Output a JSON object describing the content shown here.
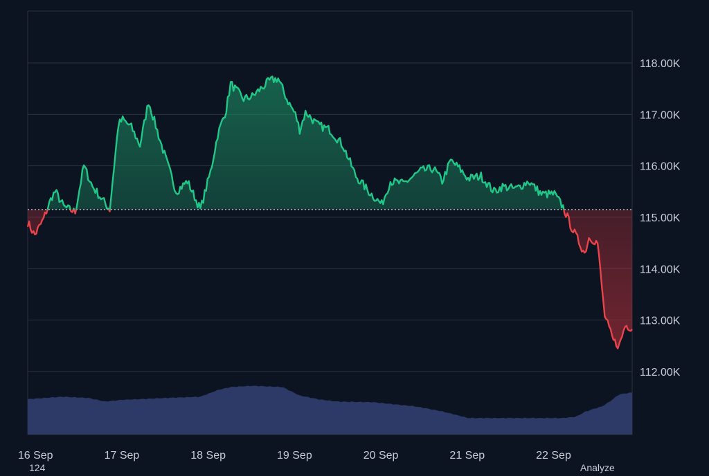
{
  "chart_data": {
    "type": "area",
    "baseline": 115150,
    "ylim": [
      111000,
      119000
    ],
    "y_ticks": [
      112000,
      113000,
      114000,
      115000,
      116000,
      117000,
      118000
    ],
    "y_tick_labels": [
      "112.00K",
      "113.00K",
      "114.00K",
      "115.00K",
      "116.00K",
      "117.00K",
      "118.00K"
    ],
    "x_tick_labels": [
      "16 Sep",
      "17 Sep",
      "18 Sep",
      "19 Sep",
      "20 Sep",
      "21 Sep",
      "22 Sep"
    ],
    "x_tick_days": [
      0.09,
      1.09,
      2.09,
      3.09,
      4.09,
      5.09,
      6.09
    ],
    "x_range_days": [
      0,
      7.0
    ],
    "price_series": {
      "x_days": [
        0,
        0.08,
        0.18,
        0.28,
        0.32,
        0.42,
        0.55,
        0.65,
        0.75,
        0.95,
        1.05,
        1.1,
        1.2,
        1.3,
        1.4,
        1.55,
        1.72,
        1.85,
        2.0,
        2.12,
        2.2,
        2.3,
        2.35,
        2.5,
        2.6,
        2.7,
        2.8,
        2.9,
        3.0,
        3.1,
        3.15,
        3.22,
        3.35,
        3.5,
        3.65,
        3.8,
        3.95,
        4.1,
        4.2,
        4.35,
        4.55,
        4.7,
        4.8,
        4.9,
        5.0,
        5.1,
        5.25,
        5.4,
        5.5,
        5.65,
        5.8,
        5.95,
        6.1,
        6.2,
        6.3,
        6.45,
        6.5,
        6.52,
        6.6,
        6.68,
        6.73,
        6.78,
        6.85,
        6.92,
        7.0
      ],
      "y_price": [
        114900,
        114650,
        114950,
        115400,
        115500,
        115200,
        115100,
        116000,
        115600,
        115150,
        116800,
        116900,
        116750,
        116400,
        117250,
        116400,
        115500,
        115700,
        115150,
        115900,
        116600,
        117100,
        117600,
        117300,
        117350,
        117500,
        117650,
        117700,
        117300,
        117000,
        116700,
        117050,
        116800,
        116700,
        116400,
        115800,
        115500,
        115250,
        115700,
        115650,
        115900,
        115950,
        115700,
        116100,
        115950,
        115750,
        115800,
        115500,
        115600,
        115550,
        115700,
        115450,
        115450,
        115200,
        114800,
        114300,
        114600,
        114600,
        114500,
        113100,
        112850,
        112600,
        112500,
        112900,
        112850
      ]
    },
    "volume_series": {
      "x_days": [
        0,
        0.4,
        0.7,
        0.9,
        1.1,
        1.3,
        1.6,
        2.0,
        2.2,
        2.35,
        2.6,
        2.95,
        3.15,
        3.4,
        3.6,
        4.0,
        4.5,
        4.8,
        5.1,
        5.3,
        5.6,
        6.0,
        6.2,
        6.35,
        6.45,
        6.55,
        6.65,
        6.75,
        6.85,
        7.0
      ],
      "level": [
        0.58,
        0.62,
        0.6,
        0.54,
        0.57,
        0.58,
        0.6,
        0.62,
        0.73,
        0.78,
        0.8,
        0.78,
        0.64,
        0.57,
        0.54,
        0.53,
        0.46,
        0.38,
        0.27,
        0.27,
        0.27,
        0.27,
        0.27,
        0.29,
        0.37,
        0.42,
        0.46,
        0.55,
        0.66,
        0.69
      ]
    },
    "colors": {
      "background": "#0d1421",
      "up_line": "#1fc888",
      "down_line": "#e8444a",
      "up_fill_top": "#1fa06e",
      "down_fill": "#b3303a",
      "volume_fill": "#2f3b6b",
      "grid": "#2a3140",
      "axis_text": "#c8ccd6",
      "baseline_dots": "#c9ced8"
    }
  },
  "footer": {
    "left_text": "124",
    "right_text": "Analyze"
  }
}
